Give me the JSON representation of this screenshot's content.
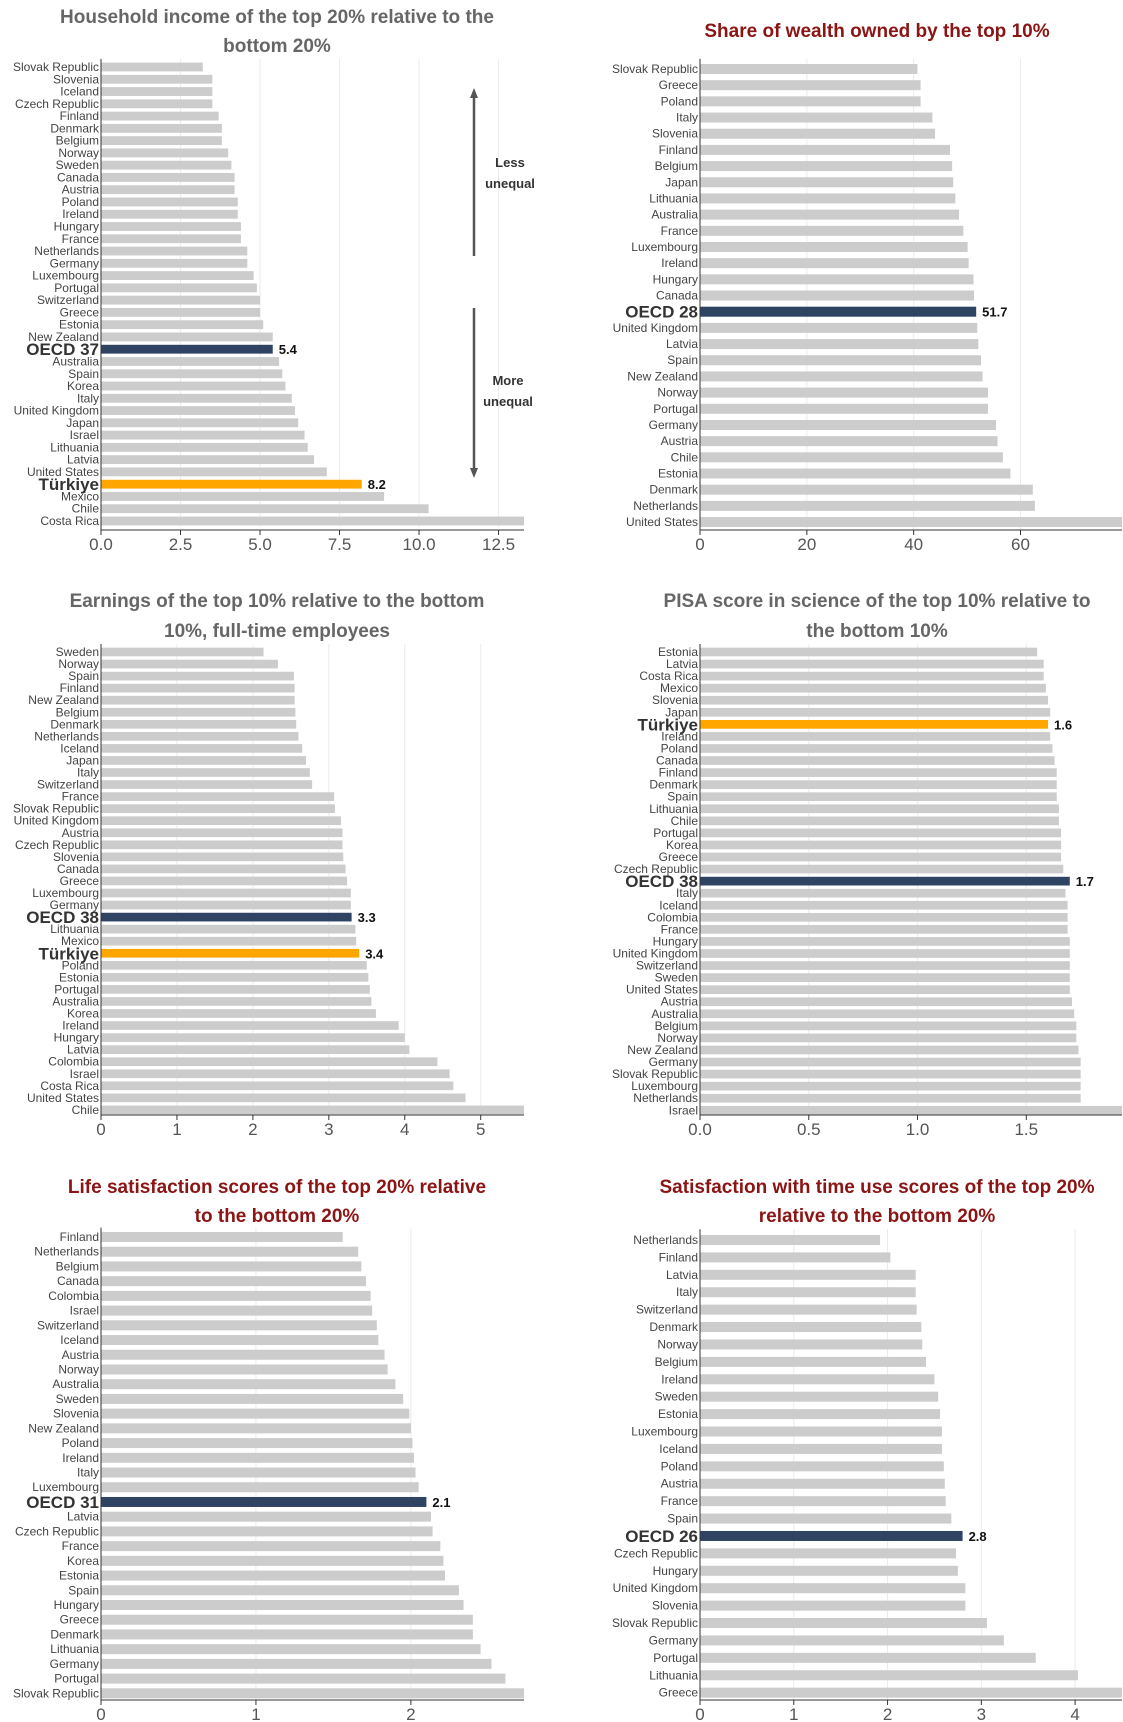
{
  "chart_data": [
    {
      "type": "bar",
      "title": "Household income of the top 20% relative to the bottom 20%",
      "title_lines": [
        "Household income of the top 20% relative to the",
        "bottom 20%"
      ],
      "title_color": "#666666",
      "xlim": [
        0,
        13.3
      ],
      "ticks": [
        "0.0",
        "2.5",
        "5.0",
        "7.5",
        "10.0",
        "12.5"
      ],
      "tick_values": [
        0,
        2.5,
        5,
        7.5,
        10,
        12.5
      ],
      "categories": [
        "Slovak Republic",
        "Slovenia",
        "Iceland",
        "Czech Republic",
        "Finland",
        "Denmark",
        "Belgium",
        "Norway",
        "Sweden",
        "Canada",
        "Austria",
        "Poland",
        "Ireland",
        "Hungary",
        "France",
        "Netherlands",
        "Germany",
        "Luxembourg",
        "Portugal",
        "Switzerland",
        "Greece",
        "Estonia",
        "New Zealand",
        "OECD 37",
        "Australia",
        "Spain",
        "Korea",
        "Italy",
        "United Kingdom",
        "Japan",
        "Israel",
        "Lithuania",
        "Latvia",
        "United States",
        "Türkiye",
        "Mexico",
        "Chile",
        "Costa Rica"
      ],
      "values": [
        3.2,
        3.5,
        3.5,
        3.5,
        3.7,
        3.8,
        3.8,
        4.0,
        4.1,
        4.2,
        4.2,
        4.3,
        4.3,
        4.4,
        4.4,
        4.6,
        4.6,
        4.8,
        4.9,
        5.0,
        5.0,
        5.1,
        5.4,
        5.4,
        5.6,
        5.7,
        5.8,
        6.0,
        6.1,
        6.2,
        6.4,
        6.5,
        6.7,
        7.1,
        8.2,
        8.9,
        10.3,
        13.3
      ],
      "value_labels": {
        "OECD 37": "5.4",
        "Türkiye": "8.2"
      },
      "annotation": {
        "less": [
          "Less",
          "unequal"
        ],
        "more": [
          "More",
          "unequal"
        ]
      }
    },
    {
      "type": "bar",
      "title": "Share of wealth owned by the top 10%",
      "title_lines": [
        "Share of wealth owned by the top 10%"
      ],
      "title_color": "#8b1414",
      "xlim": [
        0,
        79
      ],
      "ticks": [
        "0",
        "20",
        "40",
        "60"
      ],
      "tick_values": [
        0,
        20,
        40,
        60
      ],
      "categories": [
        "Slovak Republic",
        "Greece",
        "Poland",
        "Italy",
        "Slovenia",
        "Finland",
        "Belgium",
        "Japan",
        "Lithuania",
        "Australia",
        "France",
        "Luxembourg",
        "Ireland",
        "Hungary",
        "Canada",
        "OECD 28",
        "United Kingdom",
        "Latvia",
        "Spain",
        "New Zealand",
        "Norway",
        "Portugal",
        "Germany",
        "Austria",
        "Chile",
        "Estonia",
        "Denmark",
        "Netherlands",
        "United States"
      ],
      "values": [
        40.7,
        41.3,
        41.3,
        43.5,
        44.0,
        46.8,
        47.2,
        47.4,
        47.8,
        48.5,
        49.3,
        50.1,
        50.3,
        51.2,
        51.3,
        51.7,
        51.9,
        52.1,
        52.6,
        52.9,
        53.9,
        53.9,
        55.4,
        55.7,
        56.7,
        58.1,
        62.3,
        62.7,
        79.0
      ],
      "value_labels": {
        "OECD 28": "51.7"
      }
    },
    {
      "type": "bar",
      "title": "Earnings of the top 10% relative to the bottom 10%, full-time employees",
      "title_lines": [
        "Earnings of the top 10% relative to the bottom",
        "10%, full-time employees"
      ],
      "title_color": "#666666",
      "xlim": [
        0,
        5.57
      ],
      "ticks": [
        "0",
        "1",
        "2",
        "3",
        "4",
        "5"
      ],
      "tick_values": [
        0,
        1,
        2,
        3,
        4,
        5
      ],
      "categories": [
        "Sweden",
        "Norway",
        "Spain",
        "Finland",
        "New Zealand",
        "Belgium",
        "Denmark",
        "Netherlands",
        "Iceland",
        "Japan",
        "Italy",
        "Switzerland",
        "France",
        "Slovak Republic",
        "United Kingdom",
        "Austria",
        "Czech Republic",
        "Slovenia",
        "Canada",
        "Greece",
        "Luxembourg",
        "Germany",
        "OECD 38",
        "Lithuania",
        "Mexico",
        "Türkiye",
        "Poland",
        "Estonia",
        "Portugal",
        "Australia",
        "Korea",
        "Ireland",
        "Hungary",
        "Latvia",
        "Colombia",
        "Israel",
        "Costa Rica",
        "United States",
        "Chile"
      ],
      "values": [
        2.14,
        2.33,
        2.54,
        2.55,
        2.55,
        2.56,
        2.57,
        2.6,
        2.65,
        2.7,
        2.75,
        2.78,
        3.07,
        3.08,
        3.16,
        3.18,
        3.18,
        3.19,
        3.22,
        3.24,
        3.29,
        3.29,
        3.3,
        3.35,
        3.36,
        3.4,
        3.5,
        3.52,
        3.54,
        3.56,
        3.62,
        3.92,
        4.0,
        4.06,
        4.43,
        4.59,
        4.64,
        4.8,
        5.57
      ],
      "value_labels": {
        "OECD 38": "3.3",
        "Türkiye": "3.4"
      }
    },
    {
      "type": "bar",
      "title": "PISA score in science of the top 10% relative to the bottom 10%",
      "title_lines": [
        "PISA score in science of the top 10% relative to",
        "the bottom 10%"
      ],
      "title_color": "#666666",
      "xlim": [
        0,
        1.94
      ],
      "ticks": [
        "0.0",
        "0.5",
        "1.0",
        "1.5"
      ],
      "tick_values": [
        0,
        0.5,
        1.0,
        1.5
      ],
      "categories": [
        "Estonia",
        "Latvia",
        "Costa Rica",
        "Mexico",
        "Slovenia",
        "Japan",
        "Türkiye",
        "Ireland",
        "Poland",
        "Canada",
        "Finland",
        "Denmark",
        "Spain",
        "Lithuania",
        "Chile",
        "Portugal",
        "Korea",
        "Greece",
        "Czech Republic",
        "OECD 38",
        "Italy",
        "Iceland",
        "Colombia",
        "France",
        "Hungary",
        "United Kingdom",
        "Switzerland",
        "Sweden",
        "United States",
        "Austria",
        "Australia",
        "Belgium",
        "Norway",
        "New Zealand",
        "Germany",
        "Slovak Republic",
        "Luxembourg",
        "Netherlands",
        "Israel"
      ],
      "values": [
        1.55,
        1.58,
        1.58,
        1.59,
        1.6,
        1.61,
        1.6,
        1.61,
        1.62,
        1.63,
        1.64,
        1.64,
        1.64,
        1.65,
        1.65,
        1.66,
        1.66,
        1.66,
        1.67,
        1.7,
        1.68,
        1.69,
        1.69,
        1.69,
        1.7,
        1.7,
        1.7,
        1.7,
        1.7,
        1.71,
        1.72,
        1.73,
        1.73,
        1.74,
        1.75,
        1.75,
        1.75,
        1.75,
        1.94
      ],
      "value_labels": {
        "Türkiye": "1.6",
        "OECD 38": "1.7"
      }
    },
    {
      "type": "bar",
      "title": "Life satisfaction scores of the top 20% relative to the bottom 20%",
      "title_lines": [
        "Life satisfaction scores of the top 20% relative",
        "to the bottom 20%"
      ],
      "title_color": "#8b1414",
      "xlim": [
        0,
        2.73
      ],
      "ticks": [
        "0",
        "1",
        "2"
      ],
      "tick_values": [
        0,
        1,
        2
      ],
      "categories": [
        "Finland",
        "Netherlands",
        "Belgium",
        "Canada",
        "Colombia",
        "Israel",
        "Switzerland",
        "Iceland",
        "Austria",
        "Norway",
        "Australia",
        "Sweden",
        "Slovenia",
        "New Zealand",
        "Poland",
        "Ireland",
        "Italy",
        "Luxembourg",
        "OECD 31",
        "Latvia",
        "Czech Republic",
        "France",
        "Korea",
        "Estonia",
        "Spain",
        "Hungary",
        "Greece",
        "Denmark",
        "Lithuania",
        "Germany",
        "Portugal",
        "Slovak Republic"
      ],
      "values": [
        1.56,
        1.66,
        1.68,
        1.71,
        1.74,
        1.75,
        1.78,
        1.79,
        1.83,
        1.85,
        1.9,
        1.95,
        1.99,
        2.0,
        2.01,
        2.02,
        2.03,
        2.05,
        2.1,
        2.13,
        2.14,
        2.19,
        2.21,
        2.22,
        2.31,
        2.34,
        2.4,
        2.4,
        2.45,
        2.52,
        2.61,
        2.73
      ],
      "value_labels": {
        "OECD 31": "2.1"
      }
    },
    {
      "type": "bar",
      "title": "Satisfaction with time use scores of the top 20% relative to the bottom 20%",
      "title_lines": [
        "Satisfaction with time use scores of the top 20%",
        "relative to the bottom 20%"
      ],
      "title_color": "#8b1414",
      "xlim": [
        0,
        4.5
      ],
      "ticks": [
        "0",
        "1",
        "2",
        "3",
        "4"
      ],
      "tick_values": [
        0,
        1,
        2,
        3,
        4
      ],
      "categories": [
        "Netherlands",
        "Finland",
        "Latvia",
        "Italy",
        "Switzerland",
        "Denmark",
        "Norway",
        "Belgium",
        "Ireland",
        "Sweden",
        "Estonia",
        "Luxembourg",
        "Iceland",
        "Poland",
        "Austria",
        "France",
        "Spain",
        "OECD 26",
        "Czech Republic",
        "Hungary",
        "United Kingdom",
        "Slovenia",
        "Slovak Republic",
        "Germany",
        "Portugal",
        "Lithuania",
        "Greece"
      ],
      "values": [
        1.92,
        2.03,
        2.3,
        2.3,
        2.31,
        2.36,
        2.37,
        2.41,
        2.5,
        2.54,
        2.56,
        2.58,
        2.58,
        2.6,
        2.61,
        2.62,
        2.68,
        2.8,
        2.73,
        2.75,
        2.83,
        2.83,
        3.06,
        3.24,
        3.58,
        4.03,
        4.5
      ],
      "value_labels": {
        "OECD 26": "2.8"
      }
    }
  ],
  "colors": {
    "bar": "#cccccc",
    "oecd": "#2e4462",
    "turkiye": "#ffa500",
    "grid": "#ebebeb",
    "axis": "#333333",
    "label": "#444444",
    "tick": "#555555",
    "arrow": "#555555"
  }
}
